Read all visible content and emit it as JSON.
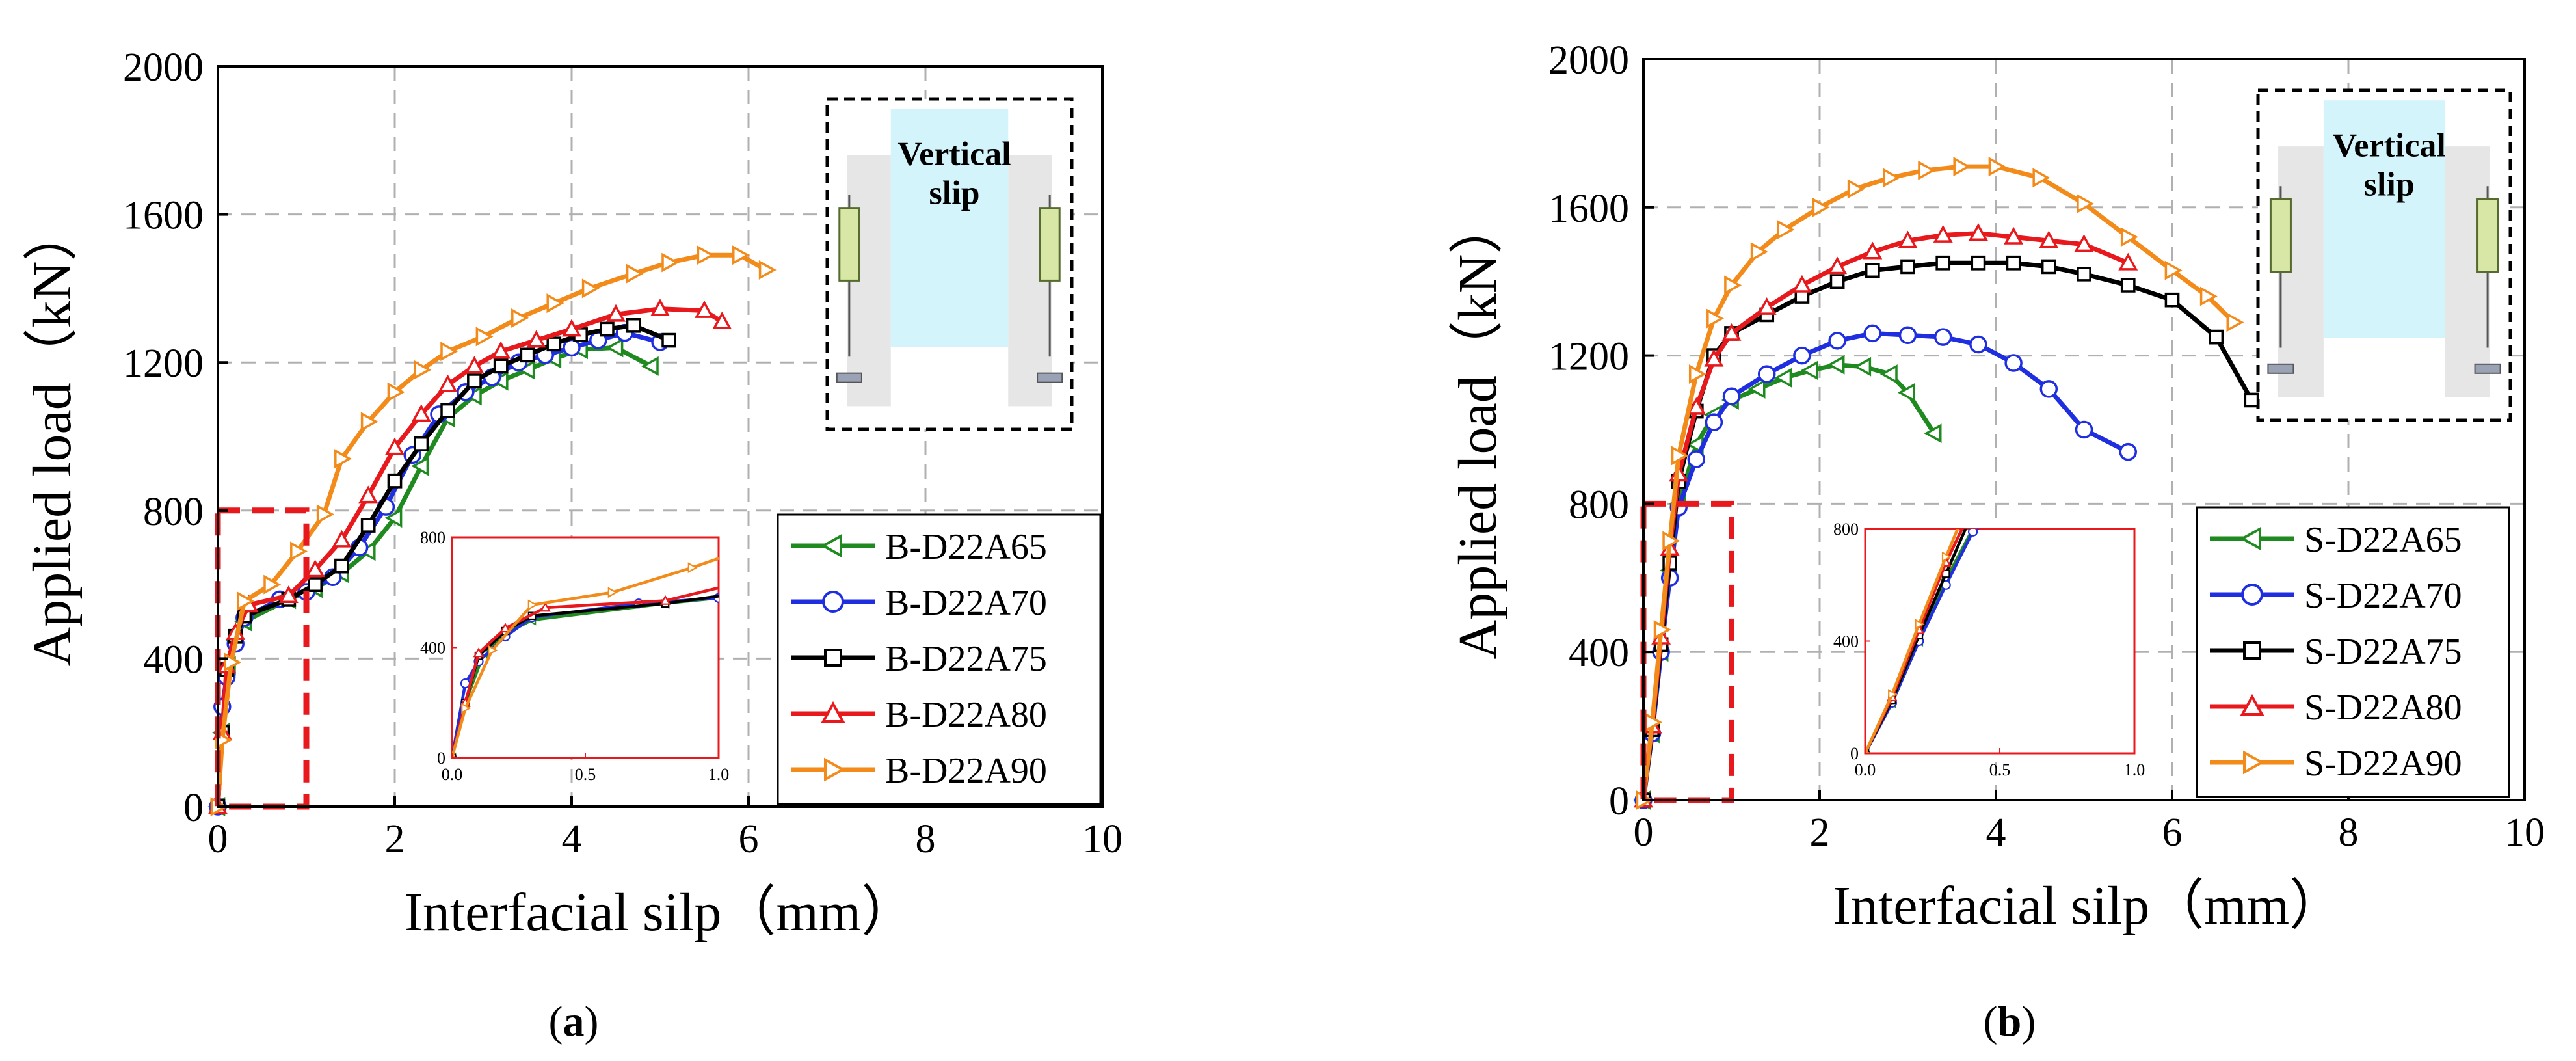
{
  "chart_data": [
    {
      "panel_label": "a",
      "type": "line",
      "title": "",
      "xlabel": "Interfacial silp（mm）",
      "ylabel": "Applied load（kN）",
      "xlim": [
        0,
        10
      ],
      "ylim": [
        0,
        2000
      ],
      "xticks": [
        "0",
        "2",
        "4",
        "6",
        "8",
        "10"
      ],
      "yticks": [
        "0",
        "400",
        "800",
        "1200",
        "1600",
        "2000"
      ],
      "grid": true,
      "legend_position": "bottom-right",
      "annotation": "Vertical slip",
      "zoom_region": {
        "x": [
          0,
          1
        ],
        "y": [
          0,
          800
        ]
      },
      "inset": {
        "xlim": [
          0,
          1
        ],
        "ylim": [
          0,
          800
        ],
        "xticks": [
          "0.0",
          "0.5",
          "1.0"
        ],
        "yticks": [
          "0",
          "400",
          "800"
        ]
      },
      "series": [
        {
          "name": "B-D22A65",
          "color": "#1f8a1f",
          "marker": "triangle-left",
          "x": [
            0,
            0.05,
            0.12,
            0.2,
            0.3,
            0.8,
            1.1,
            1.4,
            1.7,
            2.0,
            2.3,
            2.6,
            2.9,
            3.2,
            3.5,
            3.8,
            4.1,
            4.5,
            4.9
          ],
          "y": [
            0,
            200,
            380,
            450,
            500,
            560,
            590,
            630,
            690,
            780,
            920,
            1050,
            1110,
            1150,
            1180,
            1210,
            1235,
            1240,
            1190
          ]
        },
        {
          "name": "B-D22A70",
          "color": "#1f2fe0",
          "marker": "circle",
          "x": [
            0,
            0.05,
            0.1,
            0.2,
            0.3,
            0.7,
            1.0,
            1.3,
            1.6,
            1.9,
            2.2,
            2.5,
            2.8,
            3.1,
            3.4,
            3.7,
            4.0,
            4.3,
            4.6,
            5.0
          ],
          "y": [
            0,
            270,
            350,
            440,
            510,
            560,
            580,
            620,
            700,
            810,
            950,
            1060,
            1120,
            1160,
            1200,
            1220,
            1240,
            1260,
            1280,
            1255
          ]
        },
        {
          "name": "B-D22A75",
          "color": "#000000",
          "marker": "square",
          "x": [
            0,
            0.05,
            0.1,
            0.2,
            0.3,
            0.8,
            1.1,
            1.4,
            1.7,
            2.0,
            2.3,
            2.6,
            2.9,
            3.2,
            3.5,
            3.8,
            4.1,
            4.4,
            4.7,
            5.1
          ],
          "y": [
            0,
            200,
            370,
            460,
            515,
            560,
            600,
            650,
            760,
            880,
            980,
            1070,
            1150,
            1190,
            1220,
            1250,
            1275,
            1290,
            1300,
            1260
          ]
        },
        {
          "name": "B-D22A80",
          "color": "#e8191d",
          "marker": "triangle-up",
          "x": [
            0,
            0.05,
            0.1,
            0.2,
            0.35,
            0.8,
            1.1,
            1.4,
            1.7,
            2.0,
            2.3,
            2.6,
            2.9,
            3.2,
            3.6,
            4.0,
            4.5,
            5.0,
            5.5,
            5.7
          ],
          "y": [
            0,
            200,
            380,
            470,
            545,
            570,
            640,
            720,
            840,
            970,
            1060,
            1140,
            1190,
            1230,
            1260,
            1290,
            1330,
            1345,
            1340,
            1310
          ]
        },
        {
          "name": "B-D22A90",
          "color": "#f28b1a",
          "marker": "triangle-right",
          "x": [
            0,
            0.05,
            0.15,
            0.3,
            0.6,
            0.9,
            1.2,
            1.4,
            1.7,
            2.0,
            2.3,
            2.6,
            3.0,
            3.4,
            3.8,
            4.2,
            4.7,
            5.1,
            5.5,
            5.9,
            6.2
          ],
          "y": [
            0,
            180,
            390,
            555,
            600,
            690,
            790,
            940,
            1040,
            1120,
            1180,
            1230,
            1270,
            1320,
            1360,
            1400,
            1440,
            1470,
            1490,
            1490,
            1450
          ]
        }
      ]
    },
    {
      "panel_label": "b",
      "type": "line",
      "title": "",
      "xlabel": "Interfacial silp（mm）",
      "ylabel": "Applied load（kN）",
      "xlim": [
        0,
        10
      ],
      "ylim": [
        0,
        2000
      ],
      "xticks": [
        "0",
        "2",
        "4",
        "6",
        "8",
        "10"
      ],
      "yticks": [
        "0",
        "400",
        "800",
        "1200",
        "1600",
        "2000"
      ],
      "grid": true,
      "legend_position": "bottom-right",
      "annotation": "Vertical slip",
      "zoom_region": {
        "x": [
          0,
          1
        ],
        "y": [
          0,
          800
        ]
      },
      "inset": {
        "xlim": [
          0,
          1
        ],
        "ylim": [
          0,
          800
        ],
        "xticks": [
          "0.0",
          "0.5",
          "1.0"
        ],
        "yticks": [
          "0",
          "400",
          "800"
        ]
      },
      "series": [
        {
          "name": "S-D22A65",
          "color": "#1f8a1f",
          "marker": "triangle-left",
          "x": [
            0,
            0.1,
            0.2,
            0.3,
            0.4,
            0.6,
            0.8,
            1.0,
            1.3,
            1.6,
            1.9,
            2.2,
            2.5,
            2.8,
            3.0,
            3.3
          ],
          "y": [
            0,
            180,
            400,
            620,
            800,
            960,
            1040,
            1080,
            1110,
            1140,
            1160,
            1175,
            1170,
            1150,
            1100,
            990
          ]
        },
        {
          "name": "S-D22A70",
          "color": "#1f2fe0",
          "marker": "circle",
          "x": [
            0,
            0.1,
            0.2,
            0.3,
            0.4,
            0.6,
            0.8,
            1.0,
            1.4,
            1.8,
            2.2,
            2.6,
            3.0,
            3.4,
            3.8,
            4.2,
            4.6,
            5.0,
            5.5
          ],
          "y": [
            0,
            180,
            400,
            600,
            790,
            920,
            1020,
            1090,
            1150,
            1200,
            1240,
            1260,
            1255,
            1250,
            1230,
            1180,
            1110,
            1000,
            940
          ]
        },
        {
          "name": "S-D22A75",
          "color": "#000000",
          "marker": "square",
          "x": [
            0,
            0.1,
            0.2,
            0.3,
            0.4,
            0.6,
            0.8,
            1.0,
            1.4,
            1.8,
            2.2,
            2.6,
            3.0,
            3.4,
            3.8,
            4.2,
            4.6,
            5.0,
            5.5,
            6.0,
            6.5,
            6.9
          ],
          "y": [
            0,
            190,
            420,
            640,
            860,
            1050,
            1200,
            1260,
            1310,
            1360,
            1400,
            1430,
            1440,
            1450,
            1450,
            1450,
            1440,
            1420,
            1390,
            1350,
            1250,
            1080
          ]
        },
        {
          "name": "S-D22A80",
          "color": "#e8191d",
          "marker": "triangle-up",
          "x": [
            0,
            0.1,
            0.2,
            0.3,
            0.4,
            0.6,
            0.8,
            1.0,
            1.4,
            1.8,
            2.2,
            2.6,
            3.0,
            3.4,
            3.8,
            4.2,
            4.6,
            5.0,
            5.5
          ],
          "y": [
            0,
            200,
            440,
            680,
            880,
            1060,
            1190,
            1260,
            1330,
            1390,
            1440,
            1480,
            1510,
            1525,
            1530,
            1520,
            1510,
            1500,
            1450
          ]
        },
        {
          "name": "S-D22A90",
          "color": "#f28b1a",
          "marker": "triangle-right",
          "x": [
            0,
            0.1,
            0.2,
            0.3,
            0.4,
            0.6,
            0.8,
            1.0,
            1.3,
            1.6,
            2.0,
            2.4,
            2.8,
            3.2,
            3.6,
            4.0,
            4.5,
            5.0,
            5.5,
            6.0,
            6.4,
            6.7
          ],
          "y": [
            0,
            210,
            460,
            700,
            930,
            1150,
            1300,
            1390,
            1480,
            1540,
            1600,
            1650,
            1680,
            1700,
            1710,
            1710,
            1680,
            1610,
            1520,
            1430,
            1360,
            1290
          ]
        }
      ]
    }
  ]
}
